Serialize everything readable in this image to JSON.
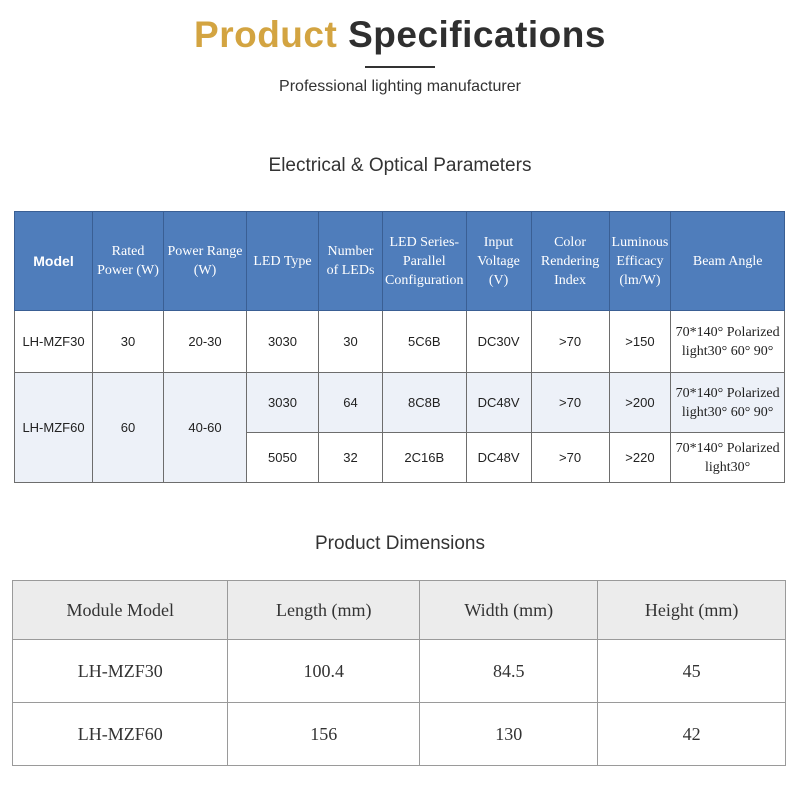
{
  "header": {
    "title_part1": "Product",
    "title_part2": "Specifications",
    "subtitle": "Professional lighting manufacturer"
  },
  "electrical": {
    "title": "Electrical & Optical Parameters",
    "columns": [
      "Model",
      "Rated Power (W)",
      "Power Range (W)",
      "LED Type",
      "Number of LEDs",
      "LED Series-Parallel Configuration",
      "Input Voltage (V)",
      "Color Rendering Index",
      "Luminous Efficacy (lm/W)",
      "Beam Angle"
    ],
    "rows": [
      {
        "model": "LH-MZF30",
        "rated": "30",
        "range": "20-30",
        "type": "3030",
        "num": "30",
        "config": "5C6B",
        "voltage": "DC30V",
        "cri": ">70",
        "efficacy": ">150",
        "beam": "70*140° Polarized light30° 60° 90°"
      },
      {
        "model": "LH-MZF60",
        "rated": "60",
        "range": "40-60",
        "type": "3030",
        "num": "64",
        "config": "8C8B",
        "voltage": "DC48V",
        "cri": ">70",
        "efficacy": ">200",
        "beam": "70*140° Polarized light30° 60° 90°"
      },
      {
        "type": "5050",
        "num": "32",
        "config": "2C16B",
        "voltage": "DC48V",
        "cri": ">70",
        "efficacy": ">220",
        "beam": "70*140° Polarized light30°"
      }
    ]
  },
  "dimensions": {
    "title": "Product Dimensions",
    "columns": [
      "Module Model",
      "Length (mm)",
      "Width (mm)",
      "Height (mm)"
    ],
    "rows": [
      [
        "LH-MZF30",
        "100.4",
        "84.5",
        "45"
      ],
      [
        "LH-MZF60",
        "156",
        "130",
        "42"
      ]
    ]
  },
  "colors": {
    "accent": "#d3a441",
    "header_blue": "#4f7dbb"
  }
}
